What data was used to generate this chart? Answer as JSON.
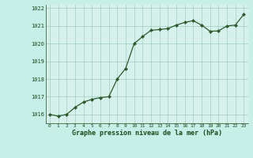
{
  "x": [
    0,
    1,
    2,
    3,
    4,
    5,
    6,
    7,
    8,
    9,
    10,
    11,
    12,
    13,
    14,
    15,
    16,
    17,
    18,
    19,
    20,
    21,
    22,
    23
  ],
  "y": [
    1016.0,
    1015.9,
    1016.0,
    1016.4,
    1016.7,
    1016.85,
    1016.95,
    1017.0,
    1018.0,
    1018.6,
    1020.0,
    1020.4,
    1020.75,
    1020.8,
    1020.85,
    1021.05,
    1021.2,
    1021.3,
    1021.05,
    1020.7,
    1020.72,
    1021.0,
    1021.05,
    1021.65
  ],
  "line_color": "#2d5a2d",
  "marker_color": "#2d5a2d",
  "bg_color": "#c8eee8",
  "plot_bg_color": "#d6f0ec",
  "grid_color": "#9ecfbf",
  "xlabel": "Graphe pression niveau de la mer (hPa)",
  "xlabel_color": "#1a4a1a",
  "tick_color": "#1a4a1a",
  "ylim": [
    1015.5,
    1022.2
  ],
  "yticks": [
    1016,
    1017,
    1018,
    1019,
    1020,
    1021,
    1022
  ],
  "xticks": [
    0,
    1,
    2,
    3,
    4,
    5,
    6,
    7,
    8,
    9,
    10,
    11,
    12,
    13,
    14,
    15,
    16,
    17,
    18,
    19,
    20,
    21,
    22,
    23
  ]
}
